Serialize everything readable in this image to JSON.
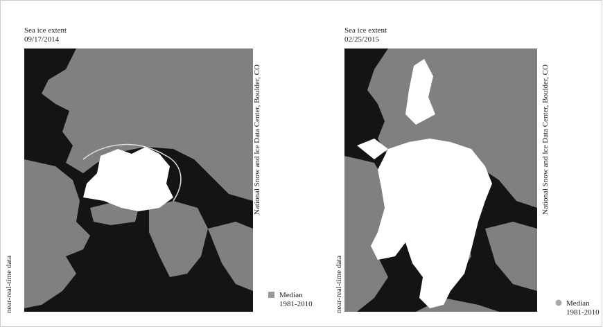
{
  "panels": [
    {
      "title": "Sea ice extent",
      "date": "09/17/2014",
      "credit": "National Snow and Ice Data Center, Boulder, CO",
      "side_label": "near-real-time data",
      "legend": {
        "label": "Median",
        "period": "1981-2010"
      }
    },
    {
      "title": "Sea ice extent",
      "date": "02/25/2015",
      "credit": "National Snow and Ice Data Center, Boulder, CO",
      "side_label": "near-real-time data",
      "legend": {
        "label": "Median",
        "period": "1981-2010"
      }
    }
  ]
}
